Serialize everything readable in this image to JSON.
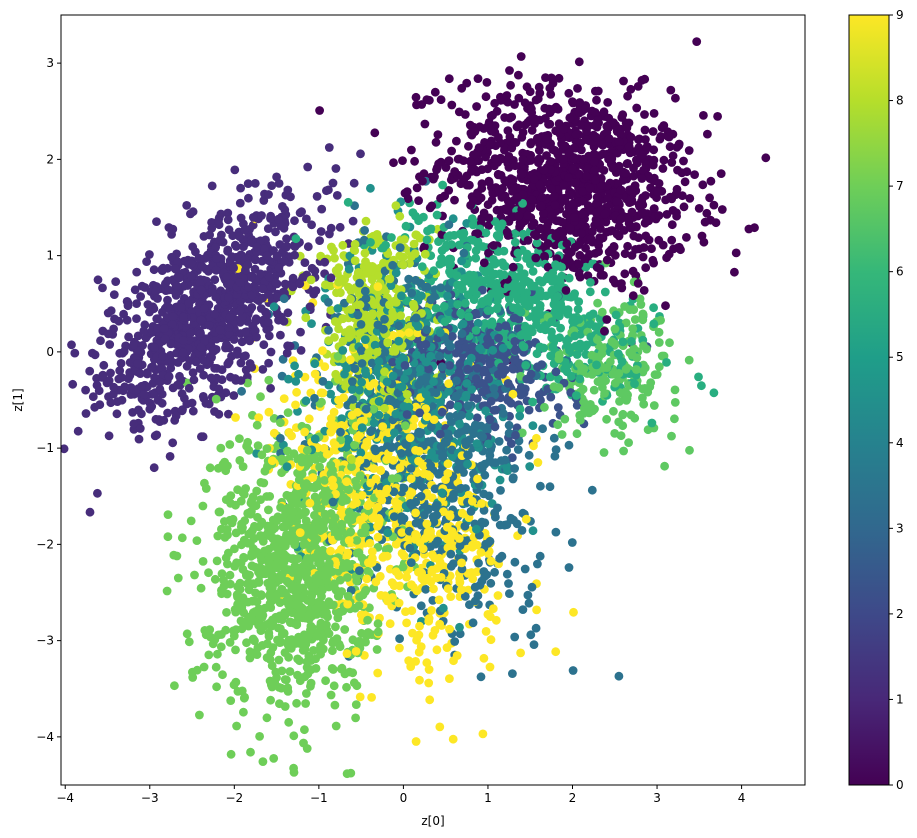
{
  "chart_data": {
    "type": "scatter",
    "title": "",
    "xlabel": "z[0]",
    "ylabel": "z[1]",
    "xlim": [
      -4.05,
      4.75
    ],
    "ylim": [
      -4.5,
      3.5
    ],
    "xticks": [
      -4,
      -3,
      -2,
      -1,
      0,
      1,
      2,
      3,
      4
    ],
    "yticks": [
      -4,
      -3,
      -2,
      -1,
      0,
      1,
      2,
      3
    ],
    "grid": false,
    "legend": "none",
    "colormap": "viridis",
    "colorbar": {
      "min": 0,
      "max": 9,
      "ticks": [
        0,
        1,
        2,
        3,
        4,
        5,
        6,
        7,
        8,
        9
      ]
    },
    "clusters": [
      {
        "label": 0,
        "center": [
          1.95,
          1.75
        ],
        "spread": [
          0.75,
          0.5
        ],
        "angle": -10,
        "n": 1100,
        "color": "#440154"
      },
      {
        "label": 1,
        "center": [
          -2.3,
          0.45
        ],
        "spread": [
          0.75,
          0.38
        ],
        "angle": 38,
        "n": 1000,
        "color": "#472d7b"
      },
      {
        "label": 2,
        "center": [
          0.95,
          -0.15
        ],
        "spread": [
          0.5,
          0.32
        ],
        "angle": -15,
        "n": 300,
        "color": "#3b528b"
      },
      {
        "label": 3,
        "center": [
          0.35,
          -1.0
        ],
        "spread": [
          0.6,
          0.9
        ],
        "angle": 25,
        "n": 700,
        "color": "#2c728e"
      },
      {
        "label": 4,
        "center": [
          0.1,
          -0.4
        ],
        "spread": [
          0.55,
          0.7
        ],
        "angle": 0,
        "n": 500,
        "color": "#21918c"
      },
      {
        "label": 5,
        "center": [
          1.4,
          0.5
        ],
        "spread": [
          0.75,
          0.35
        ],
        "angle": -25,
        "n": 550,
        "color": "#28ae80"
      },
      {
        "label": 6,
        "center": [
          2.45,
          -0.15
        ],
        "spread": [
          0.4,
          0.35
        ],
        "angle": 0,
        "n": 200,
        "color": "#5ec962"
      },
      {
        "label": 7,
        "center": [
          -1.25,
          -2.2
        ],
        "spread": [
          0.5,
          0.75
        ],
        "angle": -10,
        "n": 1000,
        "color": "#6ece58"
      },
      {
        "label": 8,
        "center": [
          -0.35,
          0.4
        ],
        "spread": [
          0.35,
          0.5
        ],
        "angle": 0,
        "n": 350,
        "color": "#b5de2b"
      },
      {
        "label": 9,
        "center": [
          -0.1,
          -1.6
        ],
        "spread": [
          0.55,
          0.9
        ],
        "angle": 25,
        "n": 700,
        "color": "#fde725"
      }
    ]
  }
}
